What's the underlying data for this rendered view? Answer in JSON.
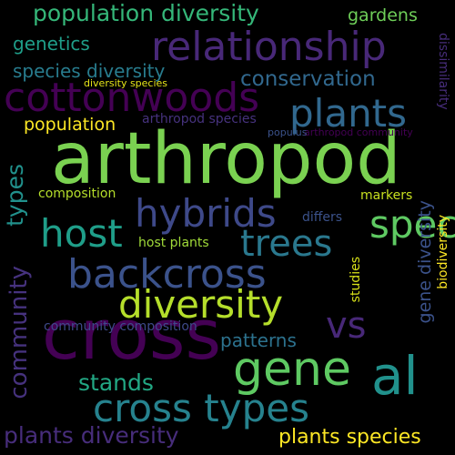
{
  "background": "#000000",
  "words": {
    "arthropod": {
      "text": "arthropod",
      "color": "#7ad151"
    },
    "cross": {
      "text": "cross",
      "color": "#440154"
    },
    "relationship": {
      "text": "relationship",
      "color": "#482878"
    },
    "cottonwoods": {
      "text": "cottonwoods",
      "color": "#440154"
    },
    "gene": {
      "text": "gene",
      "color": "#5ec962"
    },
    "al": {
      "text": "al",
      "color": "#21918c"
    },
    "backcross": {
      "text": "backcross",
      "color": "#3b528b"
    },
    "diversity": {
      "text": "diversity",
      "color": "#b5de2b"
    },
    "cross_types": {
      "text": "cross types",
      "color": "#26828e"
    },
    "hybrids": {
      "text": "hybrids",
      "color": "#3e4989"
    },
    "species": {
      "text": "species",
      "color": "#5ec962"
    },
    "plants": {
      "text": "plants",
      "color": "#31688e"
    },
    "host": {
      "text": "host",
      "color": "#1f9e89"
    },
    "trees": {
      "text": "trees",
      "color": "#2a788e"
    },
    "vs": {
      "text": "vs",
      "color": "#482878"
    },
    "population_diversity": {
      "text": "population diversity",
      "color": "#35b779"
    },
    "conservation": {
      "text": "conservation",
      "color": "#31688e"
    },
    "community": {
      "text": "community",
      "color": "#46327e"
    },
    "types": {
      "text": "types",
      "color": "#21918c"
    },
    "plants_diversity": {
      "text": "plants diversity",
      "color": "#472d7b"
    },
    "plants_species": {
      "text": "plants species",
      "color": "#fde725"
    },
    "stands": {
      "text": "stands",
      "color": "#22a884"
    },
    "patterns": {
      "text": "patterns",
      "color": "#2c728e"
    },
    "species_diversity": {
      "text": "species diversity",
      "color": "#287c8e"
    },
    "genetics": {
      "text": "genetics",
      "color": "#1f9e89"
    },
    "gardens": {
      "text": "gardens",
      "color": "#6ece58"
    },
    "population": {
      "text": "population",
      "color": "#fde725"
    },
    "gene_diversity": {
      "text": "gene diversity",
      "color": "#3b528b"
    },
    "community_composition": {
      "text": "community composition",
      "color": "#3e4989"
    },
    "composition": {
      "text": "composition",
      "color": "#b5de2b"
    },
    "host_plants": {
      "text": "host plants",
      "color": "#a0da39"
    },
    "markers": {
      "text": "markers",
      "color": "#c8e020"
    },
    "differs": {
      "text": "differs",
      "color": "#3b528b"
    },
    "studies": {
      "text": "studies",
      "color": "#d8e219"
    },
    "biodiversity": {
      "text": "biodiversity",
      "color": "#fde725"
    },
    "dissimilarity": {
      "text": "dissimilarity",
      "color": "#472d7b"
    },
    "diversity_species": {
      "text": "diversity species",
      "color": "#e5e419"
    },
    "arthropod_species": {
      "text": "arthropod species",
      "color": "#46327e"
    },
    "arthropod_community": {
      "text": "arthropod community",
      "color": "#440154"
    },
    "populus": {
      "text": "populus",
      "color": "#3b528b"
    }
  }
}
